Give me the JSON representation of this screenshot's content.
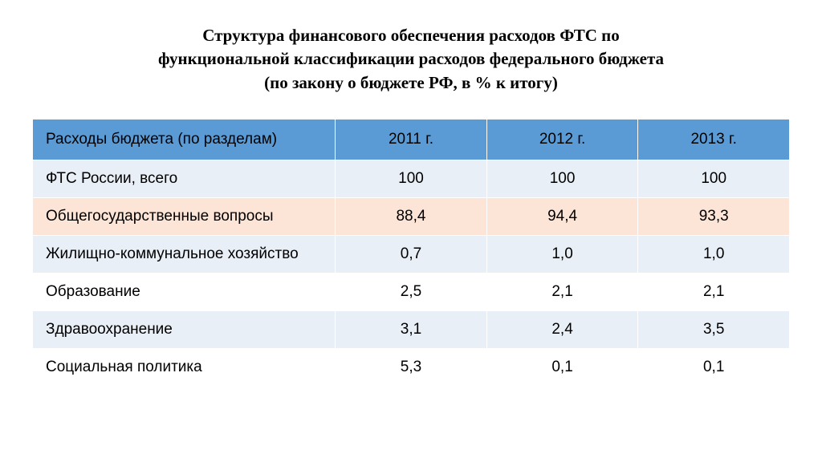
{
  "title": {
    "line1": "Структура финансового обеспечения расходов ФТС по",
    "line2": "функциональной классификации расходов федерального бюджета",
    "line3": "(по закону о бюджете РФ, в % к итогу)"
  },
  "table": {
    "type": "table",
    "header_bg": "#5b9bd5",
    "row_colors": {
      "light_blue": "#e9eff7",
      "peach": "#fce4d6",
      "white": "#ffffff"
    },
    "text_color": "#000000",
    "border_color": "#ffffff",
    "header_fontsize": 19,
    "cell_fontsize": 19,
    "columns": [
      {
        "key": "label",
        "header": "Расходы бюджета (по разделам)",
        "align": "left",
        "width_pct": 40
      },
      {
        "key": "y2011",
        "header": "2011 г.",
        "align": "center",
        "width_pct": 20
      },
      {
        "key": "y2012",
        "header": "2012 г.",
        "align": "center",
        "width_pct": 20
      },
      {
        "key": "y2013",
        "header": "2013 г.",
        "align": "center",
        "width_pct": 20
      }
    ],
    "rows": [
      {
        "label": "ФТС России, всего",
        "y2011": "100",
        "y2012": "100",
        "y2013": "100",
        "bg": "#e9eff7"
      },
      {
        "label": "Общегосударственные вопросы",
        "y2011": "88,4",
        "y2012": "94,4",
        "y2013": "93,3",
        "bg": "#fce4d6"
      },
      {
        "label": "Жилищно-коммунальное хозяйство",
        "y2011": "0,7",
        "y2012": "1,0",
        "y2013": "1,0",
        "bg": "#e9eff7"
      },
      {
        "label": "Образование",
        "y2011": "2,5",
        "y2012": "2,1",
        "y2013": "2,1",
        "bg": "#ffffff"
      },
      {
        "label": "Здравоохранение",
        "y2011": "3,1",
        "y2012": "2,4",
        "y2013": "3,5",
        "bg": "#e9eff7"
      },
      {
        "label": "Социальная политика",
        "y2011": "5,3",
        "y2012": "0,1",
        "y2013": "0,1",
        "bg": "#ffffff"
      }
    ]
  }
}
